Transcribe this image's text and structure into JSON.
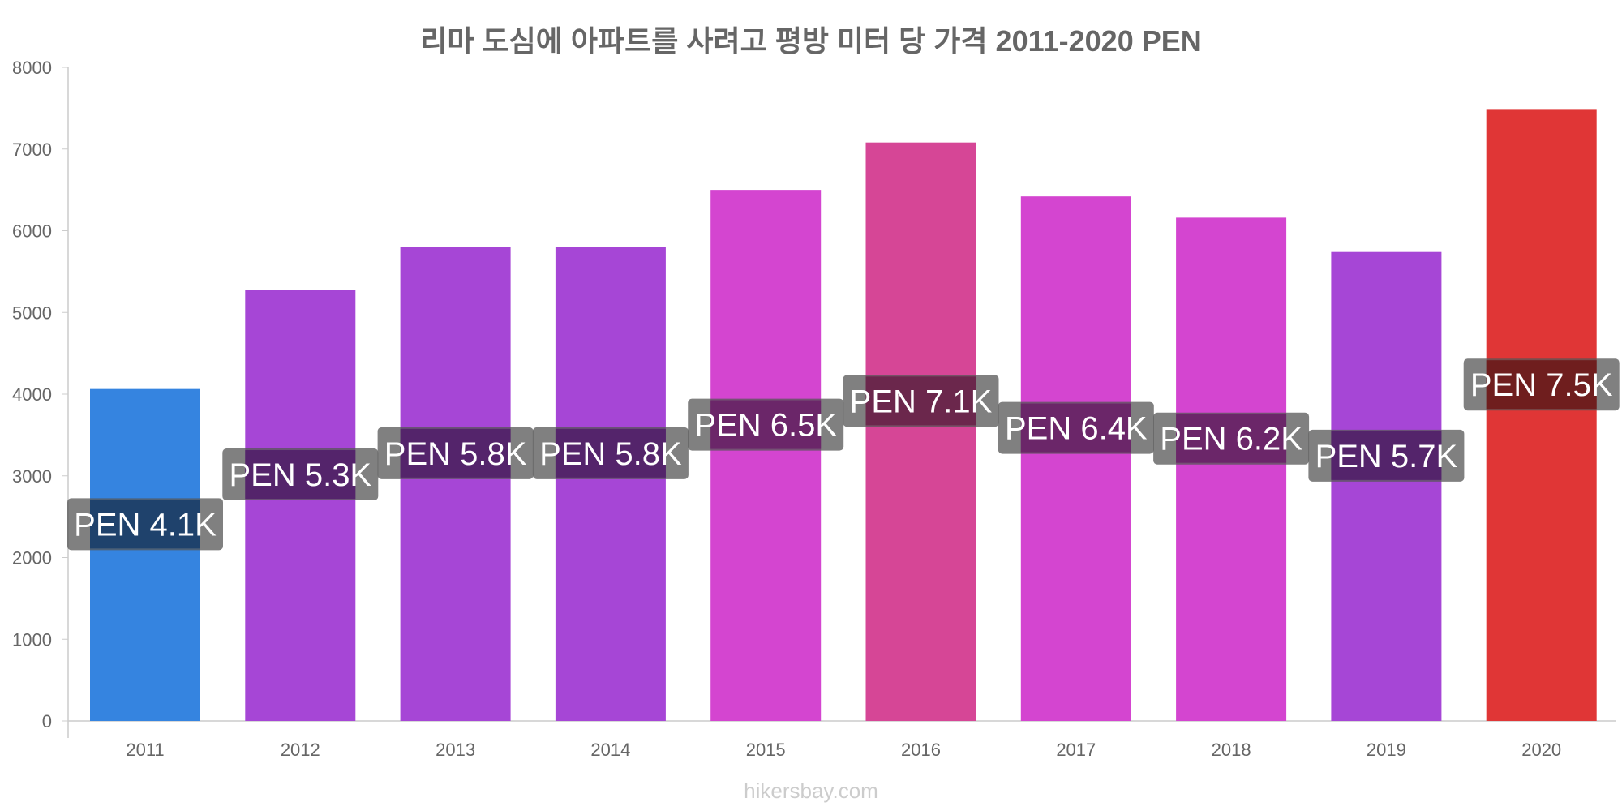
{
  "chart_data": {
    "type": "bar",
    "title": "리마 도심에 아파트를 사려고 평방 미터 당 가격 2011-2020 PEN",
    "categories": [
      "2011",
      "2012",
      "2013",
      "2014",
      "2015",
      "2016",
      "2017",
      "2018",
      "2019",
      "2020"
    ],
    "values": [
      4063,
      5280,
      5800,
      5800,
      6500,
      7080,
      6420,
      6160,
      5740,
      7480
    ],
    "data_labels": [
      "PEN 4.1K",
      "PEN 5.3K",
      "PEN 5.8K",
      "PEN 5.8K",
      "PEN 6.5K",
      "PEN 7.1K",
      "PEN 6.4K",
      "PEN 6.2K",
      "PEN 5.7K",
      "PEN 7.5K"
    ],
    "colors": [
      "#3584e0",
      "#a646d6",
      "#a646d6",
      "#a646d6",
      "#d445d0",
      "#d64696",
      "#d445d0",
      "#d445d0",
      "#a646d6",
      "#e03636"
    ],
    "label_colors": [
      "#1b3f6a",
      "#521f6a",
      "#521f6a",
      "#521f6a",
      "#6a2168",
      "#6a2249",
      "#6a2168",
      "#6a2168",
      "#521f6a",
      "#6e1a1a"
    ],
    "ylim": [
      0,
      8000
    ],
    "yticks": [
      "0",
      "1000",
      "2000",
      "3000",
      "4000",
      "5000",
      "6000",
      "7000",
      "8000"
    ],
    "xlabel": "",
    "ylabel": "",
    "grid": false
  },
  "watermark": "hikersbay.com"
}
